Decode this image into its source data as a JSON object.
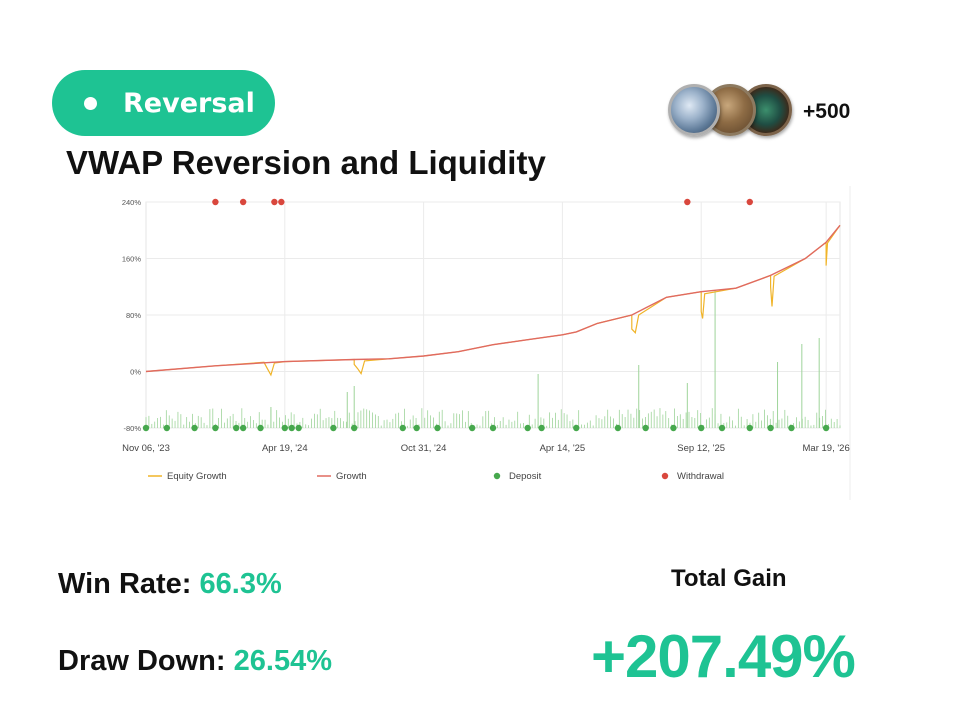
{
  "strategy": {
    "tag_label": "Reversal",
    "title": "VWAP Reversion and Liquidity",
    "followers_count": "+500"
  },
  "stats": {
    "win_rate_label": "Win Rate:",
    "win_rate_value": "66.3%",
    "drawdown_label": "Draw Down:",
    "drawdown_value": "26.54%",
    "total_gain_label": "Total Gain",
    "total_gain_value": "+207.49%"
  },
  "colors": {
    "accent": "#1ec393",
    "equity_growth": "#f0b429",
    "growth": "#e06a60",
    "deposit": "#46a84d",
    "withdrawal": "#d9473d",
    "deposit_bar": "#9ed49a"
  },
  "icons": [
    "dot-icon",
    "coin-avatar-1",
    "coin-avatar-2",
    "coin-avatar-3"
  ],
  "chart_data": {
    "type": "line",
    "y_ticks": [
      "240%",
      "160%",
      "80%",
      "0%",
      "-80%"
    ],
    "x_ticks": [
      "Nov 06, '23",
      "Apr 19, '24",
      "Oct 31, '24",
      "Apr 14, '25",
      "Sep 12, '25",
      "Mar 19, '26"
    ],
    "ylim": [
      -80,
      240
    ],
    "grid": true,
    "legend_position": "bottom",
    "legend": [
      "Equity Growth",
      "Growth",
      "Deposit",
      "Withdrawal"
    ],
    "x_label": "",
    "y_label": "",
    "series": [
      {
        "name": "Growth",
        "points": [
          [
            0,
            0
          ],
          [
            0.1,
            8
          ],
          [
            0.2,
            14
          ],
          [
            0.3,
            17
          ],
          [
            0.35,
            18
          ],
          [
            0.4,
            22
          ],
          [
            0.45,
            28
          ],
          [
            0.5,
            38
          ],
          [
            0.55,
            45
          ],
          [
            0.6,
            52
          ],
          [
            0.62,
            56
          ],
          [
            0.65,
            68
          ],
          [
            0.7,
            80
          ],
          [
            0.72,
            90
          ],
          [
            0.75,
            105
          ],
          [
            0.8,
            113
          ],
          [
            0.85,
            118
          ],
          [
            0.9,
            136
          ],
          [
            0.95,
            160
          ],
          [
            0.98,
            183
          ],
          [
            1.0,
            207
          ]
        ]
      },
      {
        "name": "Equity Growth",
        "points": [
          [
            0,
            0
          ],
          [
            0.1,
            8
          ],
          [
            0.17,
            13
          ],
          [
            0.175,
            4
          ],
          [
            0.18,
            -5
          ],
          [
            0.185,
            12
          ],
          [
            0.2,
            14
          ],
          [
            0.3,
            17
          ],
          [
            0.3,
            10
          ],
          [
            0.305,
            4
          ],
          [
            0.31,
            -3
          ],
          [
            0.315,
            15
          ],
          [
            0.35,
            18
          ],
          [
            0.4,
            22
          ],
          [
            0.45,
            28
          ],
          [
            0.5,
            38
          ],
          [
            0.55,
            45
          ],
          [
            0.6,
            52
          ],
          [
            0.62,
            56
          ],
          [
            0.65,
            68
          ],
          [
            0.7,
            80
          ],
          [
            0.7,
            60
          ],
          [
            0.705,
            55
          ],
          [
            0.71,
            80
          ],
          [
            0.75,
            105
          ],
          [
            0.8,
            113
          ],
          [
            0.8,
            85
          ],
          [
            0.802,
            75
          ],
          [
            0.805,
            110
          ],
          [
            0.85,
            118
          ],
          [
            0.9,
            136
          ],
          [
            0.9,
            120
          ],
          [
            0.902,
            92
          ],
          [
            0.905,
            135
          ],
          [
            0.95,
            160
          ],
          [
            0.98,
            183
          ],
          [
            0.98,
            150
          ],
          [
            0.982,
            182
          ],
          [
            1.0,
            207
          ]
        ]
      }
    ],
    "deposits_x": [
      0,
      0.03,
      0.07,
      0.1,
      0.13,
      0.14,
      0.165,
      0.2,
      0.21,
      0.22,
      0.27,
      0.3,
      0.37,
      0.39,
      0.42,
      0.47,
      0.5,
      0.55,
      0.57,
      0.62,
      0.68,
      0.72,
      0.76,
      0.8,
      0.83,
      0.87,
      0.9,
      0.93,
      0.98
    ],
    "withdrawals_x": [
      0.1,
      0.14,
      0.185,
      0.195,
      0.78,
      0.87
    ],
    "deposit_spike_x": [
      0.18,
      0.29,
      0.3,
      0.565,
      0.71,
      0.78,
      0.82,
      0.91,
      0.945,
      0.97
    ],
    "deposit_spike_heights": [
      35,
      60,
      70,
      90,
      105,
      75,
      230,
      110,
      140,
      150
    ]
  }
}
